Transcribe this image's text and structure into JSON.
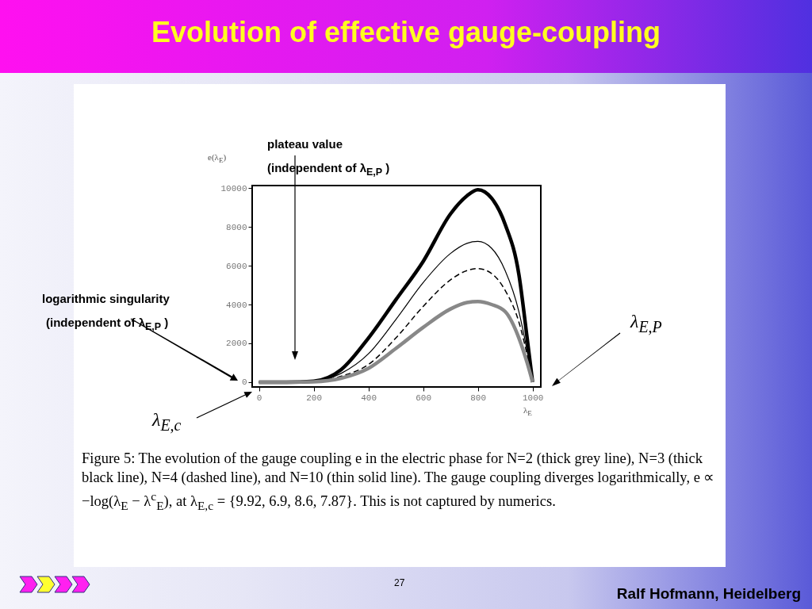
{
  "chart_data": {
    "type": "line",
    "title": "Evolution of effective gauge-coupling",
    "xlabel": "λ$_{E}$",
    "ylabel": "e(λ$_{E}$)",
    "x": [
      0,
      100,
      200,
      300,
      400,
      500,
      600,
      700,
      760,
      800,
      850,
      900,
      950,
      980,
      1000
    ],
    "series": [
      {
        "color": "#000000",
        "values": [
          0,
          0,
          50,
          640,
          2270,
          4240,
          6220,
          8670,
          9600,
          9920,
          9480,
          8120,
          5540,
          2270,
          0
        ]
      },
      {
        "color": "#000000",
        "values": [
          0,
          0,
          30,
          450,
          1460,
          3220,
          5130,
          6630,
          7150,
          7250,
          6900,
          5740,
          3630,
          1600,
          0
        ]
      },
      {
        "color": "#000000",
        "line_style": "dashed",
        "values": [
          0,
          0,
          20,
          300,
          910,
          2270,
          3900,
          5270,
          5750,
          5850,
          5600,
          4720,
          3090,
          1400,
          0
        ]
      },
      {
        "color": "#888888",
        "values": [
          0,
          0,
          20,
          200,
          710,
          1730,
          2820,
          3770,
          4100,
          4150,
          4000,
          3630,
          2270,
          1000,
          0
        ]
      }
    ],
    "xlim": [
      -25,
      1030
    ],
    "ylim": [
      -250,
      10130
    ],
    "xticks": [
      0,
      200,
      400,
      600,
      800,
      1000
    ],
    "yticks": [
      0,
      2000,
      4000,
      6000,
      8000,
      10000
    ],
    "grid": false,
    "marker": "none",
    "line_style": "solid",
    "annotations": [
      "plateau value",
      "(independent of λ$_{E,P}$ )",
      "logarithmic singularity",
      "(independent of λ$_{E,P}$ )",
      "λ$_{E,P}$",
      "λ$_{E,c}$",
      "Figure 5: The evolution of the gauge coupling e in the electric phase for N=2 (thick grey line), N=3 (thick black line), N=4 (dashed line), and N=10 (thin solid line). The gauge coupling diverges logarithmically, e ∝ −log(λ$_{E}$ − λ$^{c}$$_{E}$), at λ$_{E,c}$ = {9.92, 6.9, 8.6, 7.87}. This is not captured by numerics.",
      "27",
      "Ralf Hofmann, Heidelberg"
    ]
  }
}
